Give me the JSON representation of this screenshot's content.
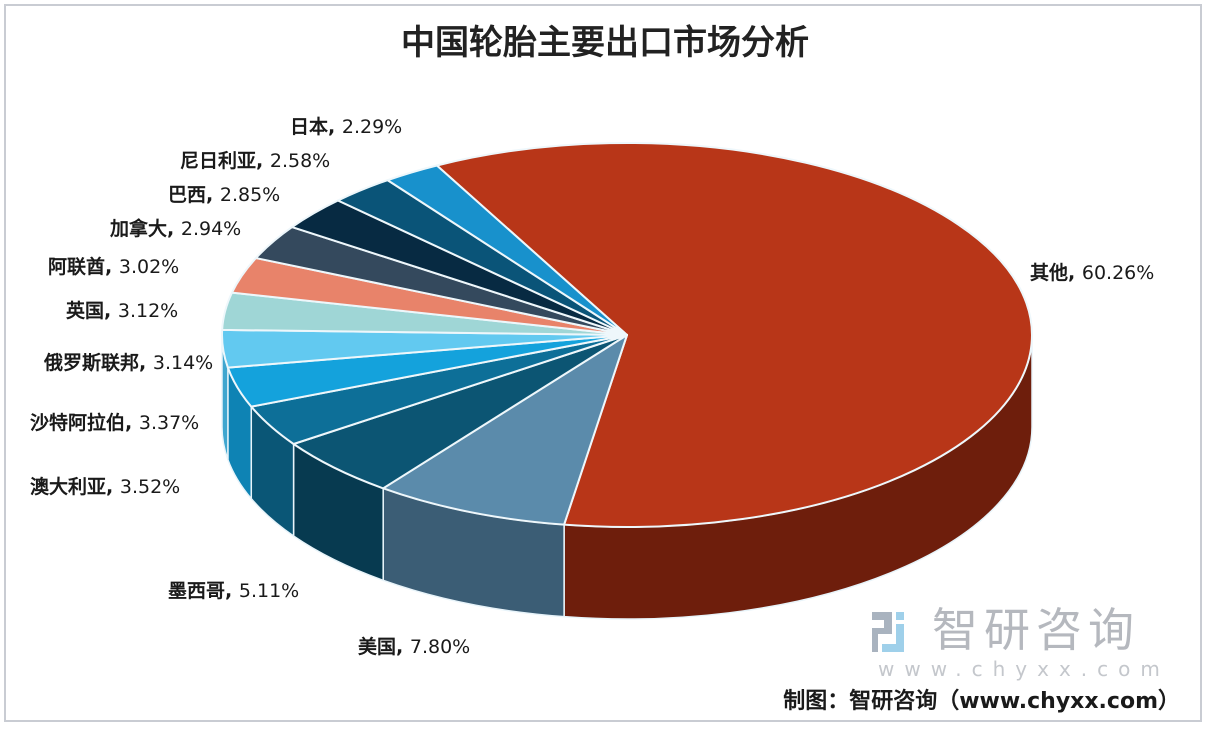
{
  "chart_data": {
    "type": "pie",
    "style": "3d",
    "title": "中国轮胎主要出口市场分析",
    "slices": [
      {
        "label": "其他",
        "value": 60.26,
        "text": "60.26%",
        "color": "#b83618",
        "side": "#6e1e0c"
      },
      {
        "label": "美国",
        "value": 7.8,
        "text": "7.80%",
        "color": "#5b8bab",
        "side": "#3b5d75"
      },
      {
        "label": "墨西哥",
        "value": 5.11,
        "text": "5.11%",
        "color": "#0c5573",
        "side": "#073a50"
      },
      {
        "label": "澳大利亚",
        "value": 3.52,
        "text": "3.52%",
        "color": "#0d6f98",
        "side": "#0a5676"
      },
      {
        "label": "沙特阿拉伯",
        "value": 3.37,
        "text": "3.37%",
        "color": "#14a2dc",
        "side": "#0e83b4"
      },
      {
        "label": "俄罗斯联邦",
        "value": 3.14,
        "text": "3.14%",
        "color": "#62c9f0",
        "side": "#3fa6cf"
      },
      {
        "label": "英国",
        "value": 3.12,
        "text": "3.12%",
        "color": "#9fd6d6",
        "side": "#7ab6b6"
      },
      {
        "label": "阿联酋",
        "value": 3.02,
        "text": "3.02%",
        "color": "#e8836a",
        "side": "#b8604b"
      },
      {
        "label": "加拿大",
        "value": 2.94,
        "text": "2.94%",
        "color": "#34495d",
        "side": "#222f3c"
      },
      {
        "label": "巴西",
        "value": 2.85,
        "text": "2.85%",
        "color": "#072a42",
        "side": "#041a29"
      },
      {
        "label": "尼日利亚",
        "value": 2.58,
        "text": "2.58%",
        "color": "#0a5478",
        "side": "#063a54"
      },
      {
        "label": "日本",
        "value": 2.29,
        "text": "2.29%",
        "color": "#1891cc",
        "side": "#0f6e9c"
      }
    ],
    "extra_slice_note": "",
    "legend": "none"
  },
  "watermark": {
    "name": "智研咨询",
    "url": "www.chyxx.com"
  },
  "source": "制图：智研咨询（www.chyxx.com）"
}
